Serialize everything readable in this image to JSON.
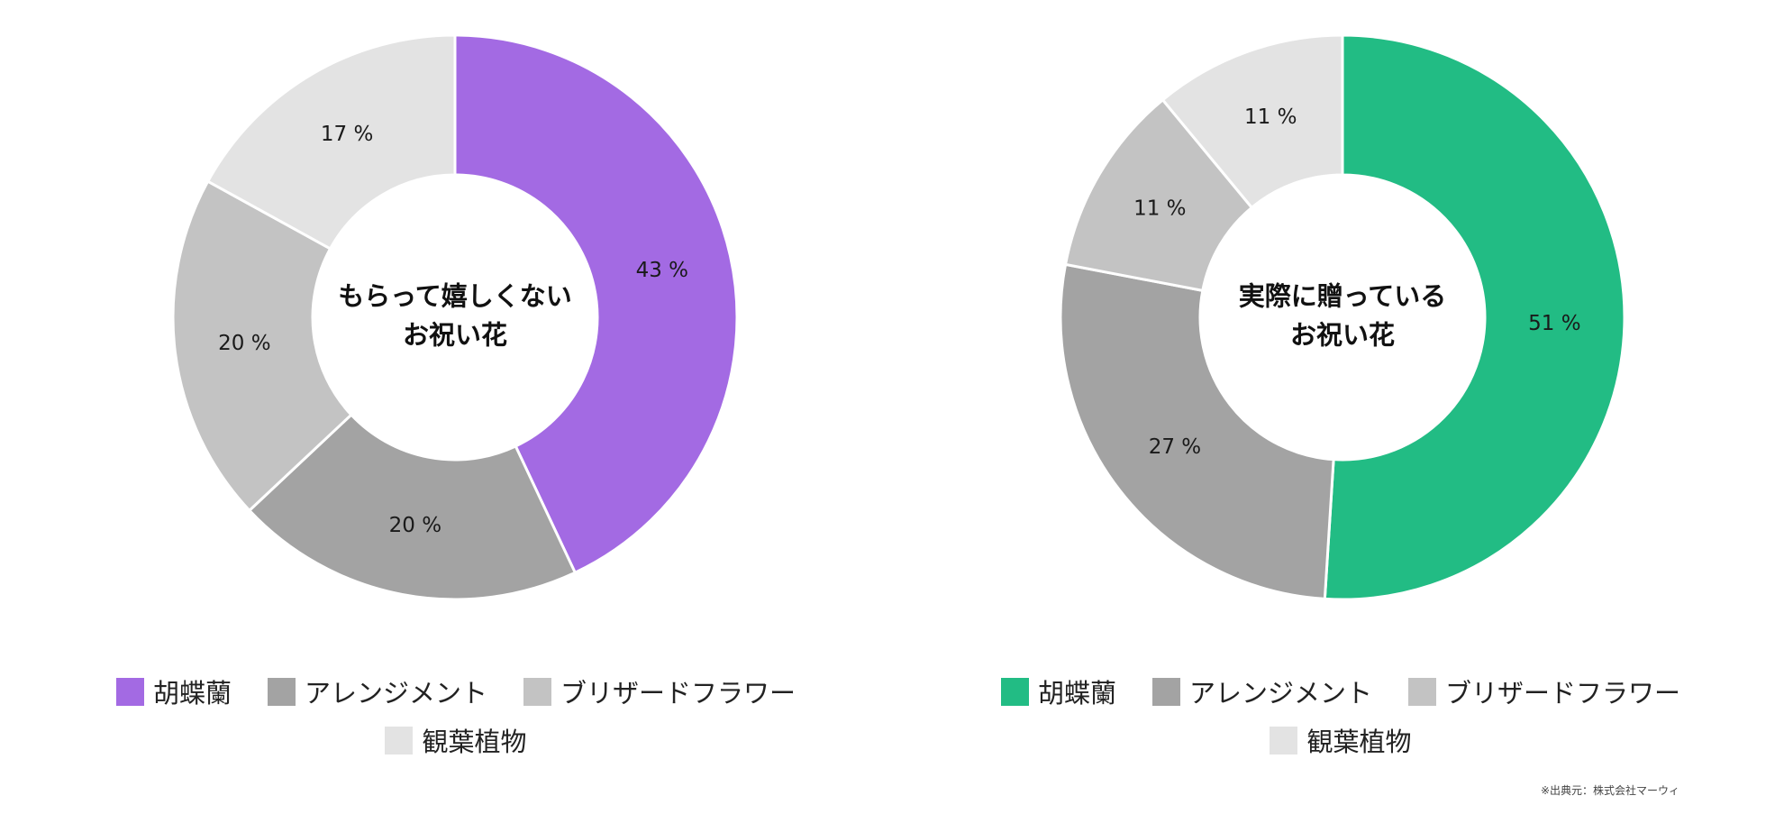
{
  "chart_data": [
    {
      "type": "pie",
      "title": "もらって嬉しくない\nお祝い花",
      "title_lines": [
        "もらって嬉しくない",
        "お祝い花"
      ],
      "categories": [
        "胡蝶蘭",
        "アレンジメント",
        "ブリザードフラワー",
        "観葉植物"
      ],
      "values": [
        43,
        20,
        20,
        17
      ],
      "value_labels": [
        "43 %",
        "20 %",
        "20 %",
        "17 %"
      ],
      "colors": [
        "#a36ae3",
        "#a3a3a3",
        "#c3c3c3",
        "#e3e3e3"
      ],
      "donut": true,
      "legend_position": "bottom"
    },
    {
      "type": "pie",
      "title": "実際に贈っている\nお祝い花",
      "title_lines": [
        "実際に贈っている",
        "お祝い花"
      ],
      "categories": [
        "胡蝶蘭",
        "アレンジメント",
        "ブリザードフラワー",
        "観葉植物"
      ],
      "values": [
        51,
        27,
        11,
        11
      ],
      "value_labels": [
        "51 %",
        "27 %",
        "11 %",
        "11 %"
      ],
      "colors": [
        "#22bc84",
        "#a3a3a3",
        "#c3c3c3",
        "#e3e3e3"
      ],
      "donut": true,
      "legend_position": "bottom"
    }
  ],
  "source_note": "※出典元：株式会社マーウィ"
}
